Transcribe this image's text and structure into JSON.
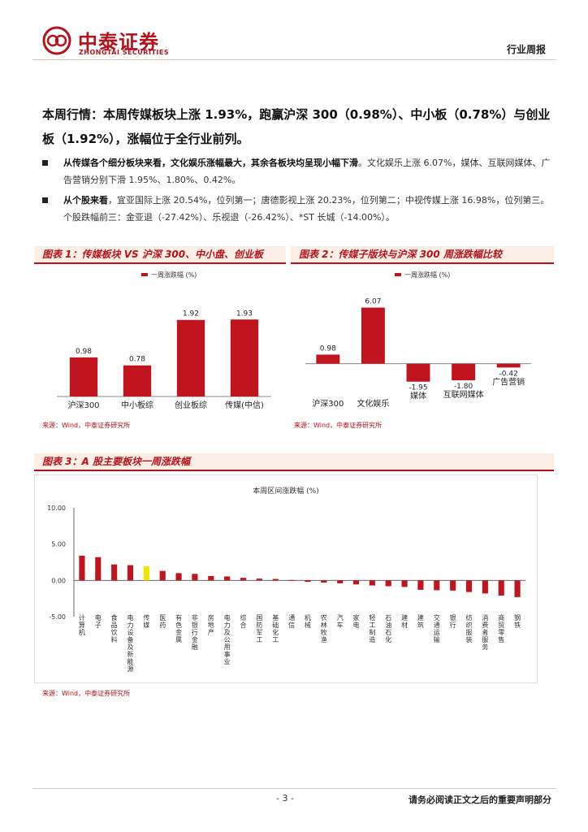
{
  "header": {
    "company_cn": "中泰证券",
    "company_en": "ZHONGTAI SECURITIES",
    "doc_type": "行业周报",
    "brand_color": "#b5121b"
  },
  "headline": "本周行情：本周传媒板块上涨 1.93%，跑赢沪深 300（0.98%）、中小板（0.78%）与创业板（1.92%），涨幅位于全行业前列。",
  "bullets": [
    {
      "bold": "从传媒各个细分板块来看，文化娱乐涨幅最大，其余各板块均呈现小幅下滑",
      "text": "。文化娱乐上涨 6.07%，媒体、互联网媒体、广告营销分别下滑 1.95%、1.80%、0.42%。"
    },
    {
      "bold": "从个股来看",
      "text": "，宜亚国际上涨 20.54%，位列第一；唐德影视上涨 20.23%，位列第二；中视传媒上涨 16.98%，位列第三。个股跌幅前三：金亚退（-27.42%）、乐视退（-26.42%）、*ST 长城（-14.00%）。"
    }
  ],
  "figures": {
    "fig1_title": "图表 1：传媒板块 VS 沪深 300、中小盘、创业板",
    "fig2_title": "图表 2：传媒子版块与沪深 300 周涨跌幅比较",
    "fig3_title": "图表 3：A 股主要板块一周涨跌幅",
    "source": "来源：Wind，中泰证券研究所"
  },
  "chart_data": [
    {
      "type": "bar",
      "title": "",
      "legend": "一周涨跌幅 (%)",
      "categories": [
        "沪深300",
        "中小板综",
        "创业板综",
        "传媒(中信)"
      ],
      "values": [
        0.98,
        0.78,
        1.92,
        1.93
      ],
      "labels": [
        "0.98",
        "0.78",
        "1.92",
        "1.93"
      ],
      "ylim": [
        0,
        2.2
      ],
      "color": "#c0141e"
    },
    {
      "type": "bar",
      "title": "",
      "legend": "一周涨跌幅 (%)",
      "categories": [
        "沪深300",
        "文化娱乐",
        "媒体",
        "互联网媒体",
        "广告营销"
      ],
      "values": [
        0.98,
        6.07,
        -1.95,
        -1.8,
        -0.42
      ],
      "labels": [
        "0.98",
        "6.07",
        "-1.95",
        "-1.80",
        "-0.42"
      ],
      "ylim": [
        -2.5,
        7
      ],
      "color": "#c0141e"
    },
    {
      "type": "bar",
      "title": "本周区间涨跌幅 (%)",
      "categories": [
        "计算机",
        "电子",
        "食品饮料",
        "电力设备及新能源",
        "传媒",
        "医药",
        "有色金属",
        "非银行金融",
        "房地产",
        "电力及公用事业",
        "综合",
        "国防军工",
        "基础化工",
        "通信",
        "机械",
        "农林牧渔",
        "汽车",
        "家电",
        "轻工制造",
        "石油石化",
        "建材",
        "建筑",
        "交通运输",
        "银行",
        "纺织服装",
        "消费者服务",
        "商贸零售",
        "钢铁"
      ],
      "values": [
        3.4,
        3.2,
        2.2,
        2.1,
        1.93,
        1.3,
        1.0,
        0.9,
        0.6,
        0.55,
        0.35,
        0.25,
        0.2,
        0.05,
        -0.2,
        -0.3,
        -0.4,
        -0.55,
        -0.7,
        -0.8,
        -0.9,
        -1.3,
        -1.35,
        -1.4,
        -1.6,
        -1.8,
        -2.1,
        -2.3
      ],
      "highlight": "传媒",
      "highlight_color": "#f5e400",
      "yticks": [
        "10.00",
        "5.00",
        "0.00",
        "-5.00"
      ],
      "ylim": [
        -5,
        10
      ],
      "color": "#c0141e"
    }
  ],
  "footer": {
    "page": "- 3 -",
    "disclaimer": "请务必阅读正文之后的重要声明部分"
  }
}
